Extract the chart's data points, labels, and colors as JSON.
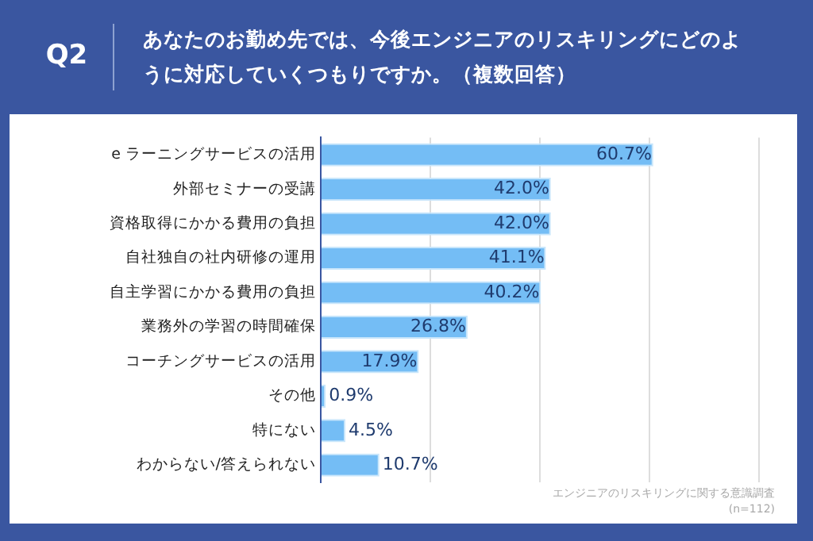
{
  "chart_data": {
    "type": "bar",
    "orientation": "horizontal",
    "title": "あなたのお勤め先では、今後エンジニアのリスキリングにどのように対応していくつもりですか。（複数回答）",
    "categories": [
      "e ラーニングサービスの活用",
      "外部セミナーの受講",
      "資格取得にかかる費用の負担",
      "自社独自の社内研修の運用",
      "自主学習にかかる費用の負担",
      "業務外の学習の時間確保",
      "コーチングサービスの活用",
      "その他",
      "特にない",
      "わからない/答えられない"
    ],
    "values": [
      60.7,
      42.0,
      42.0,
      41.1,
      40.2,
      26.8,
      17.9,
      0.9,
      4.5,
      10.7
    ],
    "value_labels": [
      "60.7%",
      "42.0%",
      "42.0%",
      "41.1%",
      "40.2%",
      "26.8%",
      "17.9%",
      "0.9%",
      "4.5%",
      "10.7%"
    ],
    "color": "#74bdf5",
    "xlim": [
      0,
      80
    ],
    "xticks": [
      {
        "value": 0,
        "label": null
      },
      {
        "value": 20,
        "label": null
      },
      {
        "value": 40,
        "label": null
      },
      {
        "value": 60,
        "label": null
      },
      {
        "value": 80,
        "label": null
      }
    ],
    "grid": "x",
    "tick_labels": "y",
    "legend": false,
    "annotations": [
      "Q2",
      "エンジニアのリスキリングに関する意識調査",
      "(n=112)"
    ]
  }
}
